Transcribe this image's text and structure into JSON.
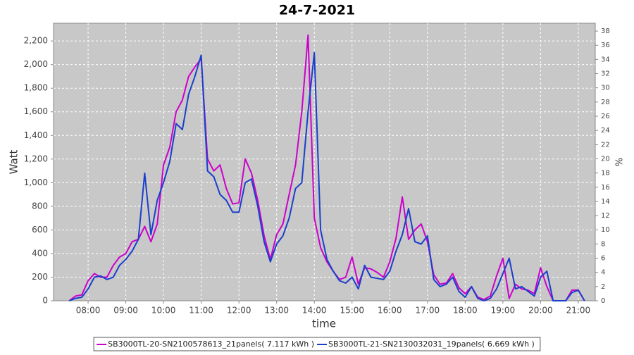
{
  "chart_data": {
    "type": "line",
    "title": "24-7-2021",
    "xlabel": "time",
    "ylabel": "Watt",
    "y2label": "%",
    "x": [
      "07:30",
      "07:40",
      "07:50",
      "08:00",
      "08:10",
      "08:20",
      "08:30",
      "08:40",
      "08:50",
      "09:00",
      "09:10",
      "09:20",
      "09:30",
      "09:40",
      "09:50",
      "10:00",
      "10:10",
      "10:20",
      "10:30",
      "10:40",
      "10:50",
      "11:00",
      "11:10",
      "11:20",
      "11:30",
      "11:40",
      "11:50",
      "12:00",
      "12:10",
      "12:20",
      "12:30",
      "12:40",
      "12:50",
      "13:00",
      "13:10",
      "13:20",
      "13:30",
      "13:40",
      "13:50",
      "14:00",
      "14:10",
      "14:20",
      "14:30",
      "14:40",
      "14:50",
      "15:00",
      "15:10",
      "15:20",
      "15:30",
      "15:40",
      "15:50",
      "16:00",
      "16:10",
      "16:20",
      "16:30",
      "16:40",
      "16:50",
      "17:00",
      "17:10",
      "17:20",
      "17:30",
      "17:40",
      "17:50",
      "18:00",
      "18:10",
      "18:20",
      "18:30",
      "18:40",
      "18:50",
      "19:00",
      "19:10",
      "19:20",
      "19:30",
      "19:40",
      "19:50",
      "20:00",
      "20:10",
      "20:20",
      "20:30",
      "20:40",
      "20:50",
      "21:00",
      "21:10"
    ],
    "series": [
      {
        "name": "SB3000TL-20-SN2100578613_21panels( 7.117 kWh )",
        "color": "#cc00cc",
        "values": [
          0,
          40,
          50,
          170,
          230,
          200,
          200,
          300,
          370,
          400,
          500,
          520,
          630,
          500,
          650,
          1150,
          1300,
          1600,
          1700,
          1900,
          1980,
          2050,
          1200,
          1100,
          1150,
          950,
          820,
          830,
          1200,
          1080,
          850,
          550,
          350,
          560,
          650,
          900,
          1150,
          1600,
          2250,
          700,
          450,
          330,
          250,
          180,
          200,
          370,
          140,
          280,
          270,
          240,
          200,
          330,
          530,
          880,
          520,
          600,
          650,
          500,
          220,
          140,
          150,
          230,
          110,
          60,
          120,
          30,
          10,
          40,
          210,
          360,
          20,
          140,
          100,
          90,
          60,
          280,
          120,
          0,
          0,
          0,
          90,
          90,
          0
        ]
      },
      {
        "name": "SB3000TL-21-SN2130032031_19panels( 6.669 kWh )",
        "color": "#1a3fcc",
        "values": [
          0,
          20,
          30,
          100,
          200,
          210,
          180,
          200,
          300,
          350,
          420,
          520,
          1080,
          560,
          850,
          1000,
          1180,
          1500,
          1450,
          1750,
          1900,
          2080,
          1100,
          1050,
          900,
          850,
          750,
          750,
          1000,
          1030,
          800,
          500,
          330,
          480,
          550,
          700,
          950,
          1000,
          1600,
          2100,
          600,
          350,
          250,
          170,
          150,
          200,
          100,
          300,
          200,
          190,
          180,
          250,
          420,
          560,
          780,
          500,
          480,
          550,
          180,
          120,
          140,
          200,
          80,
          30,
          120,
          20,
          0,
          20,
          100,
          230,
          360,
          100,
          120,
          80,
          40,
          200,
          250,
          0,
          0,
          0,
          70,
          90,
          0
        ]
      }
    ],
    "xlim": [
      "07:05",
      "21:27"
    ],
    "xticks": [
      "08:00",
      "09:00",
      "10:00",
      "11:00",
      "12:00",
      "13:00",
      "14:00",
      "15:00",
      "16:00",
      "17:00",
      "18:00",
      "19:00",
      "20:00",
      "21:00"
    ],
    "ylim": [
      0,
      2350
    ],
    "yticks": [
      0,
      200,
      400,
      600,
      800,
      {
        "value": 1000,
        "label": "1,000"
      },
      {
        "value": 1200,
        "label": "1,200"
      },
      {
        "value": 1400,
        "label": "1,400"
      },
      {
        "value": 1600,
        "label": "1,600"
      },
      {
        "value": 1800,
        "label": "1,800"
      },
      {
        "value": 2000,
        "label": "2,000"
      },
      {
        "value": 2200,
        "label": "2,200"
      }
    ],
    "y2lim": [
      0,
      39.1
    ],
    "y2ticks": [
      0,
      2,
      4,
      6,
      8,
      10,
      12,
      14,
      16,
      18,
      20,
      22,
      24,
      26,
      28,
      30,
      32,
      34,
      36,
      38
    ],
    "grid": true,
    "legend": "bottom"
  }
}
